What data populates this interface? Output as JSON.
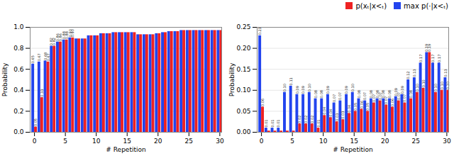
{
  "chart_data": [
    {
      "type": "bar",
      "x": [
        0,
        1,
        2,
        3,
        4,
        5,
        6,
        7,
        8,
        9,
        10,
        11,
        12,
        13,
        14,
        15,
        16,
        17,
        18,
        19,
        20,
        21,
        22,
        23,
        24,
        25,
        26,
        27,
        28,
        29,
        30
      ],
      "xlabel": "# Repetition",
      "ylabel": "Probability",
      "xlim": [
        -0.7,
        30.3
      ],
      "xticks": [
        0,
        5,
        10,
        15,
        20,
        25,
        30
      ],
      "ylim": [
        0.0,
        1.0
      ],
      "yticks": [
        {
          "value": 0.0,
          "label": "0.0"
        },
        0.2,
        0.4,
        0.6,
        0.8,
        {
          "value": 1.0,
          "label": "1.0"
        }
      ],
      "grid": true,
      "data_labels": true,
      "series": [
        {
          "name": "p(xₜ|x<ₜ)",
          "color": "#ee2222",
          "values": [
            0.05,
            0.33,
            0.67,
            0.82,
            0.86,
            0.88,
            0.9,
            0.89,
            0.89,
            0.92,
            0.92,
            0.94,
            0.94,
            0.95,
            0.95,
            0.95,
            0.95,
            0.93,
            0.93,
            0.93,
            0.94,
            0.95,
            0.96,
            0.96,
            0.97,
            0.97,
            0.97,
            0.97,
            0.97,
            0.97,
            0.97
          ],
          "value_labels": [
            "0.05",
            "0.33",
            "0.67",
            "0.82",
            "0.86",
            "0.88",
            "0.90",
            null,
            null,
            null,
            null,
            null,
            null,
            null,
            null,
            null,
            null,
            null,
            null,
            null,
            null,
            null,
            null,
            null,
            null,
            null,
            null,
            null,
            null,
            null,
            null
          ]
        },
        {
          "name": "max p(·|x<ₜ)",
          "color": "#2244ee",
          "values": [
            0.65,
            0.67,
            0.68,
            0.82,
            0.86,
            0.88,
            0.9,
            0.89,
            0.89,
            0.92,
            0.92,
            0.94,
            0.94,
            0.95,
            0.95,
            0.95,
            0.95,
            0.93,
            0.93,
            0.93,
            0.94,
            0.95,
            0.96,
            0.96,
            0.97,
            0.97,
            0.97,
            0.97,
            0.97,
            0.97,
            0.97
          ],
          "value_labels": [
            "0.65",
            "0.67",
            "0.68",
            "0.82",
            "0.86",
            "0.88",
            "0.90",
            null,
            null,
            null,
            null,
            null,
            null,
            null,
            null,
            null,
            null,
            null,
            null,
            null,
            null,
            null,
            null,
            null,
            null,
            null,
            null,
            null,
            null,
            null,
            null
          ]
        }
      ]
    },
    {
      "type": "bar",
      "x": [
        0,
        1,
        2,
        3,
        4,
        5,
        6,
        7,
        8,
        9,
        10,
        11,
        12,
        13,
        14,
        15,
        16,
        17,
        18,
        19,
        20,
        21,
        22,
        23,
        24,
        25,
        26,
        27,
        28,
        29,
        30
      ],
      "xlabel": "# Repetition",
      "ylabel": "Probability",
      "xlim": [
        -0.7,
        30.3
      ],
      "xticks": [
        0,
        5,
        10,
        15,
        20,
        25,
        30
      ],
      "ylim": [
        0.0,
        0.25
      ],
      "yticks": [
        {
          "value": 0.0,
          "label": "0.00"
        },
        0.05,
        {
          "value": 0.1,
          "label": "0.10"
        },
        0.15,
        {
          "value": 0.2,
          "label": "0.20"
        },
        0.25
      ],
      "grid": true,
      "data_labels": true,
      "legend": "upper right",
      "series": [
        {
          "name": "p(xₜ|x<ₜ)",
          "color": "#ee2222",
          "values": [
            0.06,
            0.003,
            0.003,
            0.003,
            0.003,
            0.003,
            0.02,
            0.02,
            0.02,
            0.01,
            0.04,
            0.035,
            0.025,
            0.03,
            0.045,
            0.05,
            0.055,
            0.05,
            0.07,
            0.075,
            0.065,
            0.06,
            0.075,
            0.07,
            0.08,
            0.095,
            0.105,
            0.19,
            0.095,
            0.1,
            0.1
          ],
          "value_labels": [
            "0.06",
            null,
            null,
            null,
            null,
            null,
            "0.02",
            "0.02",
            "0.02",
            "0.01",
            "0.04",
            "0.04",
            "0.03",
            "0.03",
            "0.04",
            "0.05",
            "0.06",
            "0.05",
            "0.07",
            "0.07",
            "0.07",
            "0.06",
            "0.07",
            "0.07",
            "0.08",
            "0.10",
            "0.10",
            "0.19",
            "0.10",
            "0.10",
            "0.10"
          ]
        },
        {
          "name": "max p(·|x<ₜ)",
          "color": "#2244ee",
          "values": [
            0.23,
            0.01,
            0.01,
            0.01,
            0.095,
            0.11,
            0.09,
            0.09,
            0.095,
            0.08,
            0.08,
            0.09,
            0.07,
            0.075,
            0.09,
            0.095,
            0.08,
            0.075,
            0.08,
            0.08,
            0.08,
            0.08,
            0.085,
            0.09,
            0.125,
            0.13,
            0.165,
            0.19,
            0.165,
            0.165,
            0.13
          ],
          "value_labels": [
            "0.23",
            "0.01",
            "0.01",
            "0.01",
            "0.10",
            "0.11",
            "0.09",
            "0.09",
            "0.10",
            "0.08",
            "0.08",
            "0.09",
            "0.07",
            "0.07",
            "0.09",
            "0.10",
            "0.08",
            "0.07",
            "0.08",
            "0.08",
            "0.08",
            "0.08",
            "0.09",
            "0.09",
            "0.12",
            "0.13",
            "0.17",
            "0.19",
            "0.17",
            "0.17",
            "0.13"
          ]
        }
      ]
    }
  ]
}
